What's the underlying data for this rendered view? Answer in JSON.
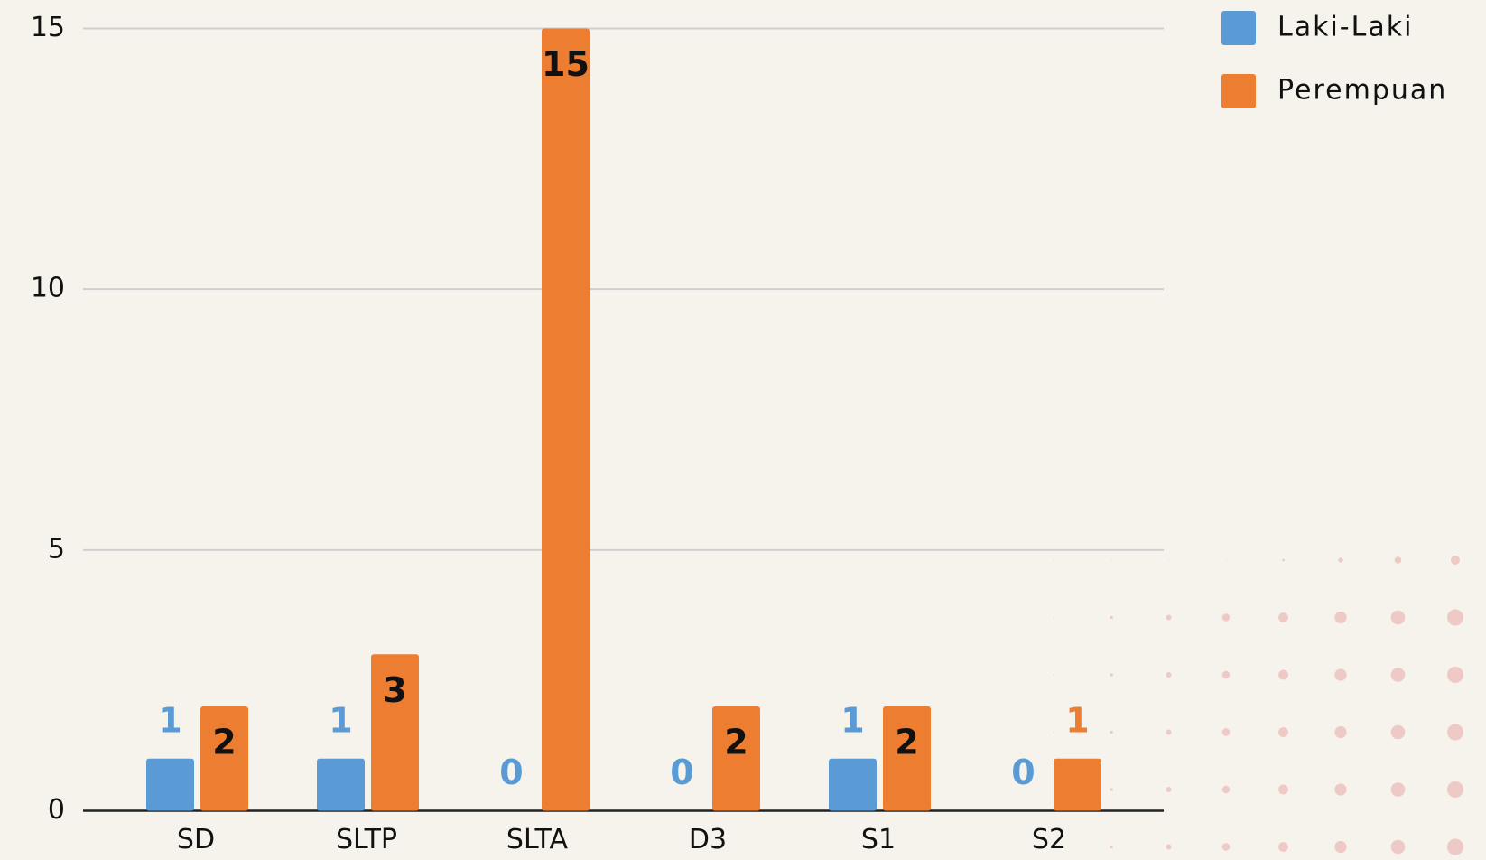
{
  "chart_data": {
    "type": "bar",
    "categories": [
      "SD",
      "SLTP",
      "SLTA",
      "D3",
      "S1",
      "S2"
    ],
    "series": [
      {
        "name": "Laki-Laki",
        "color": "#5b9bd5",
        "values": [
          1,
          1,
          0,
          0,
          1,
          0
        ]
      },
      {
        "name": "Perempuan",
        "color": "#ed7d31",
        "values": [
          2,
          3,
          15,
          2,
          2,
          1
        ]
      }
    ],
    "ylim": [
      0,
      15
    ],
    "yticks": [
      0,
      5,
      10,
      15
    ],
    "grid": true,
    "legend": "top-right"
  }
}
